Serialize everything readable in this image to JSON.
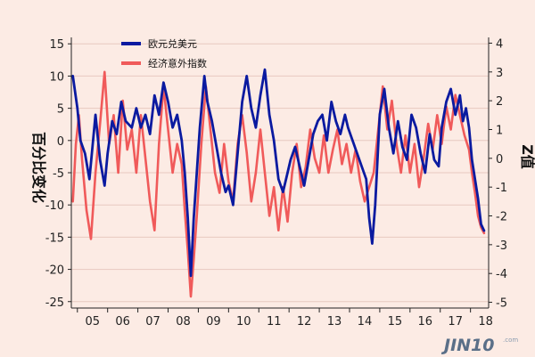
{
  "chart_data": {
    "type": "line",
    "x_ticks": [
      "05",
      "06",
      "07",
      "08",
      "09",
      "10",
      "11",
      "12",
      "13",
      "14",
      "15",
      "16",
      "17",
      "18"
    ],
    "x_range": [
      2004.8,
      2018.6
    ],
    "left_axis": {
      "label": "百分比变化",
      "range": [
        -26,
        16
      ],
      "ticks": [
        15,
        10,
        5,
        0,
        -5,
        -10,
        -15,
        -20,
        -25
      ]
    },
    "right_axis": {
      "label": "Z值",
      "range": [
        -5.2,
        4.2
      ],
      "ticks": [
        4,
        3,
        2,
        1,
        0,
        -1,
        -2,
        -3,
        -4,
        -5
      ]
    },
    "legend_position": "top-left",
    "grid": "horizontal",
    "series": [
      {
        "name": "欧元兑美元",
        "axis": "left",
        "color": "#0a1aa0",
        "style": "solid",
        "points": [
          [
            2004.85,
            10
          ],
          [
            2005.0,
            5
          ],
          [
            2005.1,
            0
          ],
          [
            2005.25,
            -2
          ],
          [
            2005.4,
            -6
          ],
          [
            2005.6,
            4
          ],
          [
            2005.75,
            -3
          ],
          [
            2005.9,
            -7
          ],
          [
            2006.0,
            -2
          ],
          [
            2006.15,
            3
          ],
          [
            2006.3,
            1
          ],
          [
            2006.45,
            6
          ],
          [
            2006.6,
            3
          ],
          [
            2006.8,
            2
          ],
          [
            2006.95,
            5
          ],
          [
            2007.1,
            2
          ],
          [
            2007.25,
            4
          ],
          [
            2007.4,
            1
          ],
          [
            2007.55,
            7
          ],
          [
            2007.7,
            4
          ],
          [
            2007.85,
            9
          ],
          [
            2008.0,
            6
          ],
          [
            2008.15,
            2
          ],
          [
            2008.3,
            4
          ],
          [
            2008.45,
            0
          ],
          [
            2008.55,
            -5
          ],
          [
            2008.65,
            -12
          ],
          [
            2008.75,
            -21
          ],
          [
            2008.85,
            -12
          ],
          [
            2008.95,
            -5
          ],
          [
            2009.05,
            2
          ],
          [
            2009.2,
            10
          ],
          [
            2009.3,
            6
          ],
          [
            2009.45,
            3
          ],
          [
            2009.6,
            -1
          ],
          [
            2009.75,
            -5
          ],
          [
            2009.9,
            -8
          ],
          [
            2010.0,
            -7
          ],
          [
            2010.15,
            -10
          ],
          [
            2010.3,
            -2
          ],
          [
            2010.45,
            6
          ],
          [
            2010.6,
            10
          ],
          [
            2010.75,
            5
          ],
          [
            2010.9,
            2
          ],
          [
            2011.05,
            7
          ],
          [
            2011.2,
            11
          ],
          [
            2011.35,
            4
          ],
          [
            2011.5,
            0
          ],
          [
            2011.65,
            -6
          ],
          [
            2011.8,
            -8
          ],
          [
            2011.95,
            -5
          ],
          [
            2012.05,
            -3
          ],
          [
            2012.2,
            -1
          ],
          [
            2012.35,
            -4
          ],
          [
            2012.5,
            -7
          ],
          [
            2012.65,
            -3
          ],
          [
            2012.8,
            1
          ],
          [
            2012.95,
            3
          ],
          [
            2013.1,
            4
          ],
          [
            2013.25,
            0
          ],
          [
            2013.4,
            6
          ],
          [
            2013.55,
            3
          ],
          [
            2013.7,
            1
          ],
          [
            2013.85,
            4
          ],
          [
            2013.95,
            2
          ],
          [
            2014.1,
            0
          ],
          [
            2014.25,
            -2
          ],
          [
            2014.4,
            -4
          ],
          [
            2014.55,
            -6
          ],
          [
            2014.65,
            -12
          ],
          [
            2014.75,
            -16
          ],
          [
            2014.85,
            -10
          ],
          [
            2015.0,
            4
          ],
          [
            2015.15,
            8
          ],
          [
            2015.3,
            2
          ],
          [
            2015.45,
            -2
          ],
          [
            2015.6,
            3
          ],
          [
            2015.75,
            -1
          ],
          [
            2015.9,
            -3
          ],
          [
            2016.05,
            4
          ],
          [
            2016.2,
            2
          ],
          [
            2016.35,
            -2
          ],
          [
            2016.5,
            -5
          ],
          [
            2016.65,
            1
          ],
          [
            2016.8,
            -3
          ],
          [
            2016.95,
            -4
          ],
          [
            2017.05,
            2
          ],
          [
            2017.2,
            6
          ],
          [
            2017.35,
            8
          ],
          [
            2017.5,
            4
          ],
          [
            2017.65,
            7
          ],
          [
            2017.75,
            3
          ],
          [
            2017.85,
            5
          ],
          [
            2017.95,
            2
          ],
          [
            2018.05,
            -3
          ],
          [
            2018.15,
            -6
          ],
          [
            2018.25,
            -9
          ],
          [
            2018.35,
            -13
          ],
          [
            2018.45,
            -14
          ]
        ]
      },
      {
        "name": "经济意外指数",
        "axis": "right",
        "color": "#f05a5a",
        "style": "solid",
        "points": [
          [
            2004.85,
            -1.5
          ],
          [
            2004.95,
            0.5
          ],
          [
            2005.05,
            1.5
          ],
          [
            2005.15,
            0
          ],
          [
            2005.3,
            -1.8
          ],
          [
            2005.45,
            -2.8
          ],
          [
            2005.6,
            -0.5
          ],
          [
            2005.75,
            1.2
          ],
          [
            2005.9,
            3.0
          ],
          [
            2006.05,
            0.5
          ],
          [
            2006.2,
            1.5
          ],
          [
            2006.35,
            -0.5
          ],
          [
            2006.5,
            2.0
          ],
          [
            2006.65,
            0.3
          ],
          [
            2006.8,
            1.0
          ],
          [
            2006.95,
            -0.5
          ],
          [
            2007.1,
            1.5
          ],
          [
            2007.25,
            0
          ],
          [
            2007.4,
            -1.5
          ],
          [
            2007.55,
            -2.5
          ],
          [
            2007.7,
            0.5
          ],
          [
            2007.85,
            2.5
          ],
          [
            2008.0,
            1.0
          ],
          [
            2008.15,
            -0.5
          ],
          [
            2008.3,
            0.5
          ],
          [
            2008.45,
            -0.2
          ],
          [
            2008.55,
            -1.8
          ],
          [
            2008.65,
            -3.2
          ],
          [
            2008.75,
            -4.8
          ],
          [
            2008.85,
            -3.5
          ],
          [
            2008.95,
            -2.0
          ],
          [
            2009.1,
            0.5
          ],
          [
            2009.25,
            2.5
          ],
          [
            2009.4,
            1.0
          ],
          [
            2009.55,
            -0.5
          ],
          [
            2009.7,
            -1.2
          ],
          [
            2009.85,
            0.5
          ],
          [
            2010.0,
            -0.8
          ],
          [
            2010.15,
            -1.5
          ],
          [
            2010.3,
            0.5
          ],
          [
            2010.45,
            1.5
          ],
          [
            2010.6,
            0.2
          ],
          [
            2010.75,
            -1.5
          ],
          [
            2010.9,
            -0.5
          ],
          [
            2011.05,
            1.0
          ],
          [
            2011.2,
            -0.5
          ],
          [
            2011.35,
            -2.0
          ],
          [
            2011.5,
            -1.0
          ],
          [
            2011.65,
            -2.5
          ],
          [
            2011.8,
            -1.0
          ],
          [
            2011.95,
            -2.2
          ],
          [
            2012.1,
            -0.5
          ],
          [
            2012.25,
            0.5
          ],
          [
            2012.4,
            -1.0
          ],
          [
            2012.55,
            -0.3
          ],
          [
            2012.7,
            1.0
          ],
          [
            2012.85,
            0
          ],
          [
            2013.0,
            -0.5
          ],
          [
            2013.15,
            0.8
          ],
          [
            2013.3,
            -0.5
          ],
          [
            2013.45,
            0.3
          ],
          [
            2013.6,
            1.0
          ],
          [
            2013.75,
            -0.2
          ],
          [
            2013.9,
            0.5
          ],
          [
            2014.05,
            -0.5
          ],
          [
            2014.2,
            0.3
          ],
          [
            2014.35,
            -0.8
          ],
          [
            2014.5,
            -1.5
          ],
          [
            2014.65,
            -1.0
          ],
          [
            2014.8,
            -0.5
          ],
          [
            2014.95,
            1.0
          ],
          [
            2015.1,
            2.5
          ],
          [
            2015.25,
            1.0
          ],
          [
            2015.4,
            2.0
          ],
          [
            2015.55,
            0.5
          ],
          [
            2015.7,
            -0.5
          ],
          [
            2015.85,
            0.8
          ],
          [
            2016.0,
            -0.5
          ],
          [
            2016.15,
            0.5
          ],
          [
            2016.3,
            -1.0
          ],
          [
            2016.45,
            0
          ],
          [
            2016.6,
            1.2
          ],
          [
            2016.75,
            0.3
          ],
          [
            2016.9,
            1.5
          ],
          [
            2017.05,
            0.5
          ],
          [
            2017.2,
            1.8
          ],
          [
            2017.35,
            1.0
          ],
          [
            2017.5,
            2.2
          ],
          [
            2017.65,
            1.5
          ],
          [
            2017.8,
            0.8
          ],
          [
            2017.95,
            0.3
          ],
          [
            2018.05,
            -0.5
          ],
          [
            2018.15,
            -1.2
          ],
          [
            2018.25,
            -2.0
          ],
          [
            2018.35,
            -2.4
          ],
          [
            2018.45,
            -2.6
          ]
        ]
      }
    ]
  },
  "watermark": {
    "brand": "JIN10",
    "suffix": ".com"
  }
}
